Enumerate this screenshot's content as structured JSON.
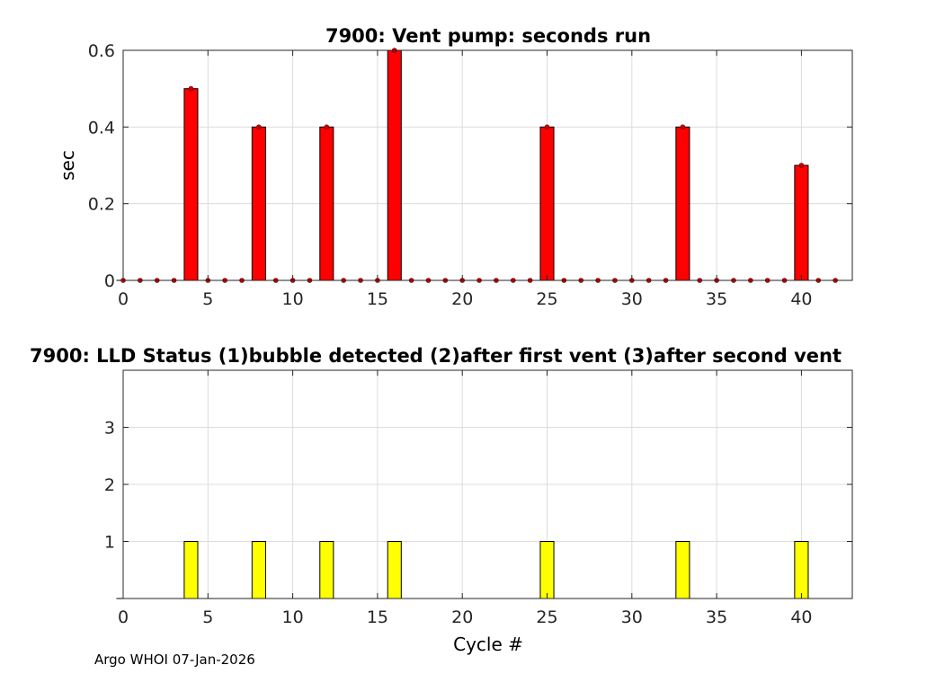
{
  "footer": "Argo WHOI 07-Jan-2026",
  "chart_data": [
    {
      "type": "bar",
      "title": "7900: Vent pump: seconds run",
      "xlabel": "",
      "ylabel": "sec",
      "xlim": [
        0,
        43
      ],
      "ylim": [
        0,
        0.6
      ],
      "xticks": [
        0,
        5,
        10,
        15,
        20,
        25,
        30,
        35,
        40
      ],
      "yticks": [
        0,
        0.2,
        0.4,
        0.6
      ],
      "ytick_labels": [
        "0",
        "0.2",
        "0.4",
        "0.6"
      ],
      "grid": true,
      "bar_color": "#ff0000",
      "marker_color": "#cc0000",
      "x": [
        0,
        1,
        2,
        3,
        4,
        5,
        6,
        7,
        8,
        9,
        10,
        11,
        12,
        13,
        14,
        15,
        16,
        17,
        18,
        19,
        20,
        21,
        22,
        23,
        24,
        25,
        26,
        27,
        28,
        29,
        30,
        31,
        32,
        33,
        34,
        35,
        36,
        37,
        38,
        39,
        40,
        41,
        42
      ],
      "values": [
        0,
        0,
        0,
        0,
        0.5,
        0,
        0,
        0,
        0.4,
        0,
        0,
        0,
        0.4,
        0,
        0,
        0,
        0.6,
        0,
        0,
        0,
        0,
        0,
        0,
        0,
        0,
        0.4,
        0,
        0,
        0,
        0,
        0,
        0,
        0,
        0.4,
        0,
        0,
        0,
        0,
        0,
        0,
        0.3,
        0,
        0
      ]
    },
    {
      "type": "bar",
      "title": "7900: LLD Status   (1)bubble detected   (2)after first vent  (3)after second vent",
      "xlabel": "Cycle #",
      "ylabel": "",
      "xlim": [
        0,
        43
      ],
      "ylim": [
        0,
        4
      ],
      "xticks": [
        0,
        5,
        10,
        15,
        20,
        25,
        30,
        35,
        40
      ],
      "yticks": [
        1,
        2,
        3
      ],
      "ytick_labels": [
        "1",
        "2",
        "3"
      ],
      "grid": true,
      "bar_color": "#ffff00",
      "x": [
        0,
        1,
        2,
        3,
        4,
        5,
        6,
        7,
        8,
        9,
        10,
        11,
        12,
        13,
        14,
        15,
        16,
        17,
        18,
        19,
        20,
        21,
        22,
        23,
        24,
        25,
        26,
        27,
        28,
        29,
        30,
        31,
        32,
        33,
        34,
        35,
        36,
        37,
        38,
        39,
        40,
        41,
        42
      ],
      "values": [
        0,
        0,
        0,
        0,
        1,
        0,
        0,
        0,
        1,
        0,
        0,
        0,
        1,
        0,
        0,
        0,
        1,
        0,
        0,
        0,
        0,
        0,
        0,
        0,
        0,
        1,
        0,
        0,
        0,
        0,
        0,
        0,
        0,
        1,
        0,
        0,
        0,
        0,
        0,
        0,
        1,
        0,
        0
      ]
    }
  ]
}
